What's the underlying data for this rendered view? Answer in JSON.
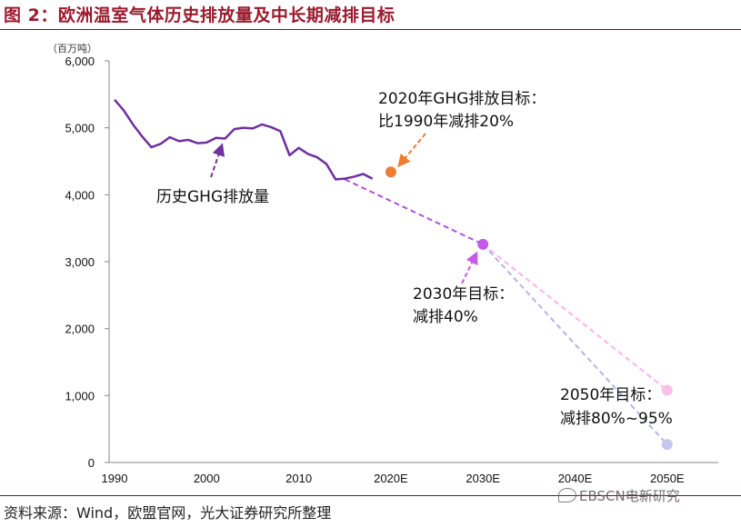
{
  "header": {
    "figure_title": "图 2：欧洲温室气体历史排放量及中长期减排目标"
  },
  "footer": {
    "source": "资料来源：Wind，欧盟官网，光大证券研究所整理",
    "watermark": "EBSCN电新研究"
  },
  "chart_data": {
    "type": "line",
    "unit_label": "（百万吨）",
    "categories": [
      "1990",
      "2000",
      "2010",
      "2020E",
      "2030E",
      "2040E",
      "2050E"
    ],
    "y_ticks": [
      "0",
      "1,000",
      "2,000",
      "3,000",
      "4,000",
      "5,000",
      "6,000"
    ],
    "ylim": [
      0,
      6000
    ],
    "series": [
      {
        "name": "历史GHG排放量",
        "color": "#7030a0",
        "x": [
          1990,
          1991,
          1992,
          1993,
          1994,
          1995,
          1996,
          1997,
          1998,
          1999,
          2000,
          2001,
          2002,
          2003,
          2004,
          2005,
          2006,
          2007,
          2008,
          2009,
          2010,
          2011,
          2012,
          2013,
          2014,
          2015,
          2016,
          2017,
          2018
        ],
        "values": [
          5420,
          5260,
          5050,
          4870,
          4710,
          4760,
          4860,
          4800,
          4820,
          4770,
          4780,
          4850,
          4840,
          4980,
          5000,
          4990,
          5050,
          5010,
          4950,
          4590,
          4700,
          4610,
          4560,
          4460,
          4230,
          4240,
          4270,
          4310,
          4240
        ]
      }
    ],
    "targets": [
      {
        "x": 2020,
        "value": 4340,
        "color": "#ed7d31",
        "label_line1": "2020年GHG排放目标：",
        "label_line2": "比1990年减排20%"
      },
      {
        "x": 2030,
        "value": 3260,
        "color": "#c55ae8",
        "label_line1": "2030年目标：",
        "label_line2": "减排40%"
      },
      {
        "x": 2050,
        "value": 1080,
        "color": "#ffc0e8",
        "label_line1": "2050年目标：",
        "label_line2": "减排80%~95%"
      },
      {
        "x": 2050,
        "value": 270,
        "color": "#c6c6f0",
        "label_line1": "",
        "label_line2": ""
      }
    ],
    "projections": [
      {
        "from": [
          2015,
          4230
        ],
        "to": [
          2030,
          3260
        ],
        "color": "#b050e0"
      },
      {
        "from": [
          2030,
          3260
        ],
        "to": [
          2050,
          1080
        ],
        "color": "#ffb3e6"
      },
      {
        "from": [
          2030,
          3260
        ],
        "to": [
          2050,
          270
        ],
        "color": "#b4b4ea"
      }
    ],
    "series_label": "历史GHG排放量"
  }
}
